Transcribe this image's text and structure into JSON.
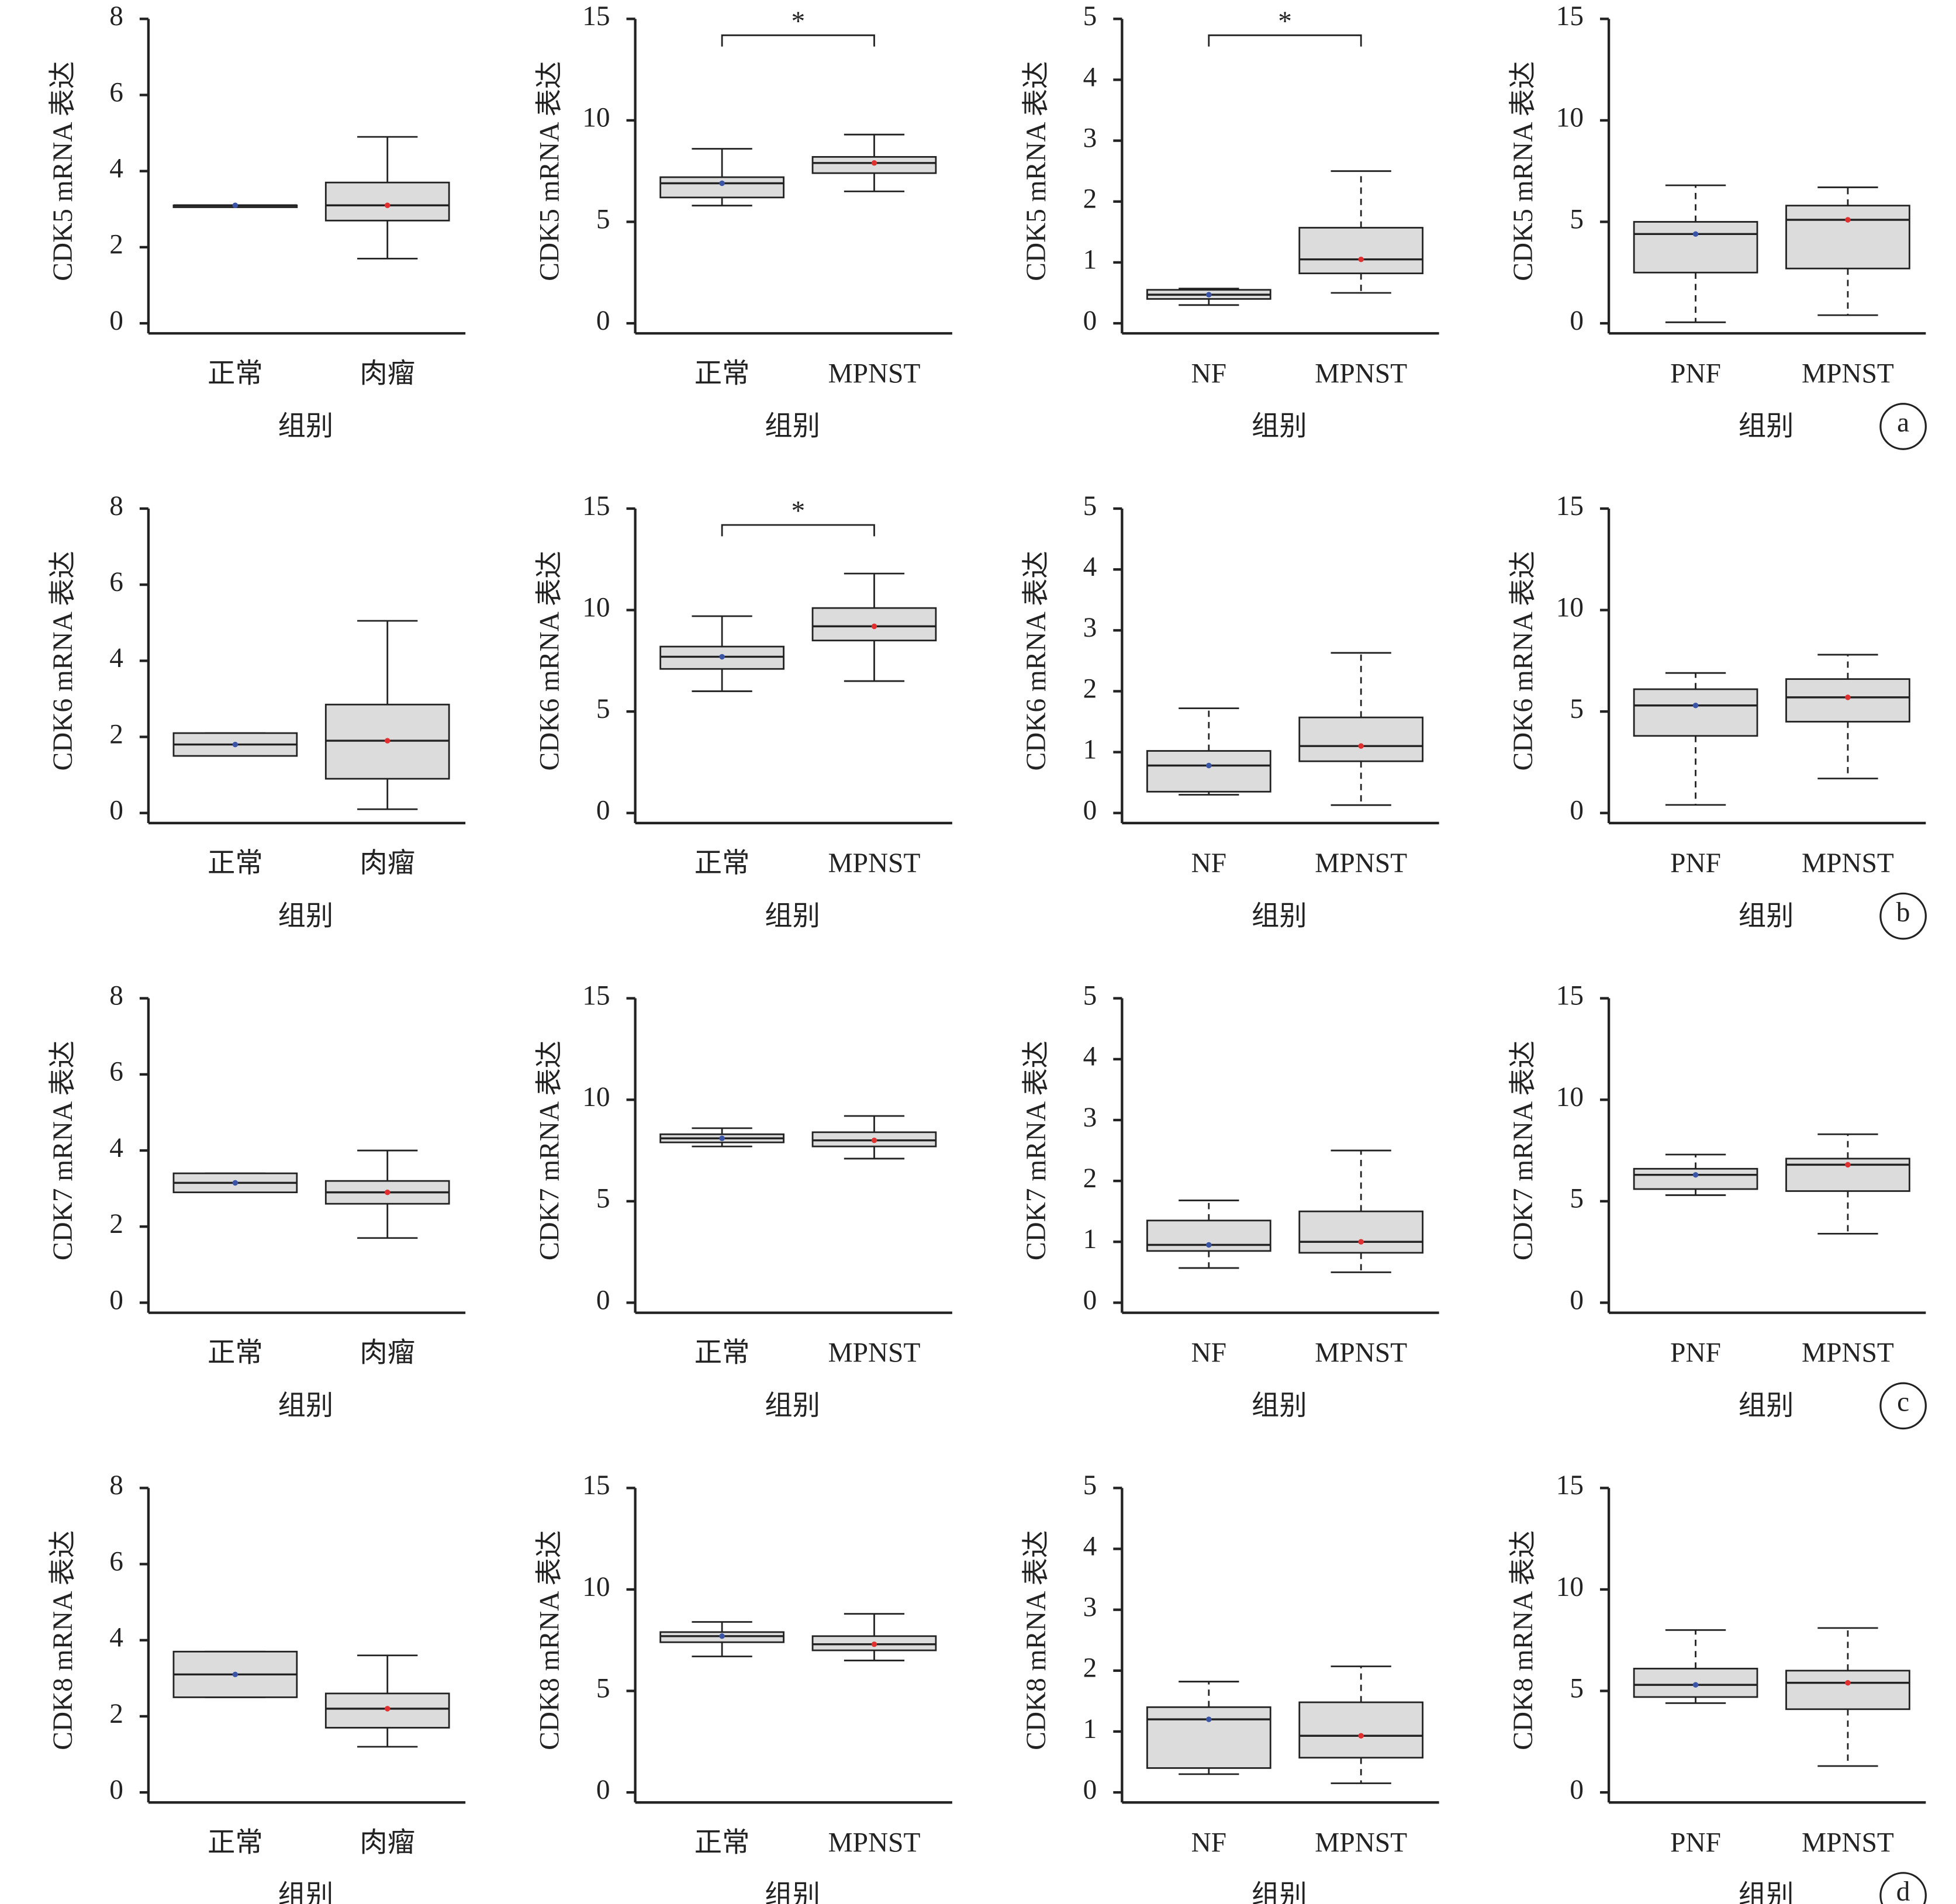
{
  "chart_data": [
    {
      "type": "box",
      "ylabel": "CDK5 mRNA 表达",
      "xlabel": "组别",
      "categories": [
        "正常",
        "肉瘤"
      ],
      "colors": [
        "#3a55a5",
        "#e03030"
      ],
      "ylim": [
        0,
        8
      ],
      "yticks": [
        0,
        2,
        4,
        6,
        8
      ],
      "dashed_whiskers": false,
      "boxes": [
        {
          "min": 3.1,
          "q1": 3.1,
          "median": 3.1,
          "q3": 3.1,
          "max": 3.1
        },
        {
          "min": 1.7,
          "q1": 2.7,
          "median": 3.1,
          "q3": 3.7,
          "max": 4.9
        }
      ]
    },
    {
      "type": "box",
      "ylabel": "CDK5 mRNA 表达",
      "xlabel": "组别",
      "categories": [
        "正常",
        "MPNST"
      ],
      "colors": [
        "#3a55a5",
        "#e03030"
      ],
      "ylim": [
        0,
        15
      ],
      "yticks": [
        0,
        5,
        10,
        15
      ],
      "dashed_whiskers": false,
      "significance": "*",
      "boxes": [
        {
          "min": 5.8,
          "q1": 6.2,
          "median": 6.9,
          "q3": 7.2,
          "max": 8.6
        },
        {
          "min": 6.5,
          "q1": 7.4,
          "median": 7.9,
          "q3": 8.2,
          "max": 9.3
        }
      ]
    },
    {
      "type": "box",
      "ylabel": "CDK5 mRNA 表达",
      "xlabel": "组别",
      "categories": [
        "NF",
        "MPNST"
      ],
      "colors": [
        "#3a55a5",
        "#e03030"
      ],
      "ylim": [
        0,
        5
      ],
      "yticks": [
        0,
        1,
        2,
        3,
        4,
        5
      ],
      "dashed_whiskers": true,
      "significance": "*",
      "boxes": [
        {
          "min": 0.3,
          "q1": 0.4,
          "median": 0.47,
          "q3": 0.55,
          "max": 0.57
        },
        {
          "min": 0.5,
          "q1": 0.82,
          "median": 1.05,
          "q3": 1.57,
          "max": 2.5
        }
      ]
    },
    {
      "type": "box",
      "ylabel": "CDK5 mRNA 表达",
      "xlabel": "组别",
      "categories": [
        "PNF",
        "MPNST"
      ],
      "colors": [
        "#3a55a5",
        "#e03030"
      ],
      "ylim": [
        0,
        15
      ],
      "yticks": [
        0,
        5,
        10,
        15
      ],
      "dashed_whiskers": true,
      "panel_label": "a",
      "boxes": [
        {
          "min": 0.05,
          "q1": 2.5,
          "median": 4.4,
          "q3": 5.0,
          "max": 6.8
        },
        {
          "min": 0.4,
          "q1": 2.7,
          "median": 5.1,
          "q3": 5.8,
          "max": 6.7
        }
      ]
    },
    {
      "type": "box",
      "ylabel": "CDK6 mRNA 表达",
      "xlabel": "组别",
      "categories": [
        "正常",
        "肉瘤"
      ],
      "colors": [
        "#3a55a5",
        "#e03030"
      ],
      "ylim": [
        0,
        8
      ],
      "yticks": [
        0,
        2,
        4,
        6,
        8
      ],
      "dashed_whiskers": false,
      "boxes": [
        {
          "min": 1.5,
          "q1": 1.5,
          "median": 1.8,
          "q3": 2.1,
          "max": 2.1
        },
        {
          "min": 0.1,
          "q1": 0.9,
          "median": 1.9,
          "q3": 2.85,
          "max": 5.05
        }
      ]
    },
    {
      "type": "box",
      "ylabel": "CDK6 mRNA 表达",
      "xlabel": "组别",
      "categories": [
        "正常",
        "MPNST"
      ],
      "colors": [
        "#3a55a5",
        "#e03030"
      ],
      "ylim": [
        0,
        15
      ],
      "yticks": [
        0,
        5,
        10,
        15
      ],
      "dashed_whiskers": false,
      "significance": "*",
      "boxes": [
        {
          "min": 6.0,
          "q1": 7.1,
          "median": 7.7,
          "q3": 8.2,
          "max": 9.7
        },
        {
          "min": 6.5,
          "q1": 8.5,
          "median": 9.2,
          "q3": 10.1,
          "max": 11.8
        }
      ]
    },
    {
      "type": "box",
      "ylabel": "CDK6 mRNA 表达",
      "xlabel": "组别",
      "categories": [
        "NF",
        "MPNST"
      ],
      "colors": [
        "#3a55a5",
        "#e03030"
      ],
      "ylim": [
        0,
        5
      ],
      "yticks": [
        0,
        1,
        2,
        3,
        4,
        5
      ],
      "dashed_whiskers": true,
      "boxes": [
        {
          "min": 0.3,
          "q1": 0.35,
          "median": 0.78,
          "q3": 1.02,
          "max": 1.72
        },
        {
          "min": 0.13,
          "q1": 0.85,
          "median": 1.1,
          "q3": 1.57,
          "max": 2.63
        }
      ]
    },
    {
      "type": "box",
      "ylabel": "CDK6 mRNA 表达",
      "xlabel": "组别",
      "categories": [
        "PNF",
        "MPNST"
      ],
      "colors": [
        "#3a55a5",
        "#e03030"
      ],
      "ylim": [
        0,
        15
      ],
      "yticks": [
        0,
        5,
        10,
        15
      ],
      "dashed_whiskers": true,
      "panel_label": "b",
      "boxes": [
        {
          "min": 0.4,
          "q1": 3.8,
          "median": 5.3,
          "q3": 6.1,
          "max": 6.9
        },
        {
          "min": 1.7,
          "q1": 4.5,
          "median": 5.7,
          "q3": 6.6,
          "max": 7.8
        }
      ]
    },
    {
      "type": "box",
      "ylabel": "CDK7 mRNA 表达",
      "xlabel": "组别",
      "categories": [
        "正常",
        "肉瘤"
      ],
      "colors": [
        "#3a55a5",
        "#e03030"
      ],
      "ylim": [
        0,
        8
      ],
      "yticks": [
        0,
        2,
        4,
        6,
        8
      ],
      "dashed_whiskers": false,
      "boxes": [
        {
          "min": 2.9,
          "q1": 2.9,
          "median": 3.15,
          "q3": 3.4,
          "max": 3.4
        },
        {
          "min": 1.7,
          "q1": 2.6,
          "median": 2.9,
          "q3": 3.2,
          "max": 4.0
        }
      ]
    },
    {
      "type": "box",
      "ylabel": "CDK7 mRNA 表达",
      "xlabel": "组别",
      "categories": [
        "正常",
        "MPNST"
      ],
      "colors": [
        "#3a55a5",
        "#e03030"
      ],
      "ylim": [
        0,
        15
      ],
      "yticks": [
        0,
        5,
        10,
        15
      ],
      "dashed_whiskers": false,
      "boxes": [
        {
          "min": 7.7,
          "q1": 7.9,
          "median": 8.1,
          "q3": 8.3,
          "max": 8.6
        },
        {
          "min": 7.1,
          "q1": 7.7,
          "median": 8.0,
          "q3": 8.4,
          "max": 9.2
        }
      ]
    },
    {
      "type": "box",
      "ylabel": "CDK7 mRNA 表达",
      "xlabel": "组别",
      "categories": [
        "NF",
        "MPNST"
      ],
      "colors": [
        "#3a55a5",
        "#e03030"
      ],
      "ylim": [
        0,
        5
      ],
      "yticks": [
        0,
        1,
        2,
        3,
        4,
        5
      ],
      "dashed_whiskers": true,
      "boxes": [
        {
          "min": 0.57,
          "q1": 0.85,
          "median": 0.95,
          "q3": 1.35,
          "max": 1.68
        },
        {
          "min": 0.5,
          "q1": 0.82,
          "median": 1.0,
          "q3": 1.5,
          "max": 2.5
        }
      ]
    },
    {
      "type": "box",
      "ylabel": "CDK7 mRNA 表达",
      "xlabel": "组别",
      "categories": [
        "PNF",
        "MPNST"
      ],
      "colors": [
        "#3a55a5",
        "#e03030"
      ],
      "ylim": [
        0,
        15
      ],
      "yticks": [
        0,
        5,
        10,
        15
      ],
      "dashed_whiskers": true,
      "panel_label": "c",
      "boxes": [
        {
          "min": 5.3,
          "q1": 5.6,
          "median": 6.3,
          "q3": 6.6,
          "max": 7.3
        },
        {
          "min": 3.4,
          "q1": 5.5,
          "median": 6.8,
          "q3": 7.1,
          "max": 8.3
        }
      ]
    },
    {
      "type": "box",
      "ylabel": "CDK8 mRNA 表达",
      "xlabel": "组别",
      "categories": [
        "正常",
        "肉瘤"
      ],
      "colors": [
        "#3a55a5",
        "#e03030"
      ],
      "ylim": [
        0,
        8
      ],
      "yticks": [
        0,
        2,
        4,
        6,
        8
      ],
      "dashed_whiskers": false,
      "boxes": [
        {
          "min": 2.5,
          "q1": 2.5,
          "median": 3.1,
          "q3": 3.7,
          "max": 3.7
        },
        {
          "min": 1.2,
          "q1": 1.7,
          "median": 2.2,
          "q3": 2.6,
          "max": 3.6
        }
      ]
    },
    {
      "type": "box",
      "ylabel": "CDK8 mRNA 表达",
      "xlabel": "组别",
      "categories": [
        "正常",
        "MPNST"
      ],
      "colors": [
        "#3a55a5",
        "#e03030"
      ],
      "ylim": [
        0,
        15
      ],
      "yticks": [
        0,
        5,
        10,
        15
      ],
      "dashed_whiskers": false,
      "boxes": [
        {
          "min": 6.7,
          "q1": 7.4,
          "median": 7.7,
          "q3": 7.9,
          "max": 8.4
        },
        {
          "min": 6.5,
          "q1": 7.0,
          "median": 7.3,
          "q3": 7.7,
          "max": 8.8
        }
      ]
    },
    {
      "type": "box",
      "ylabel": "CDK8 mRNA 表达",
      "xlabel": "组别",
      "categories": [
        "NF",
        "MPNST"
      ],
      "colors": [
        "#3a55a5",
        "#e03030"
      ],
      "ylim": [
        0,
        5
      ],
      "yticks": [
        0,
        1,
        2,
        3,
        4,
        5
      ],
      "dashed_whiskers": true,
      "boxes": [
        {
          "min": 0.3,
          "q1": 0.4,
          "median": 1.2,
          "q3": 1.4,
          "max": 1.82
        },
        {
          "min": 0.15,
          "q1": 0.57,
          "median": 0.93,
          "q3": 1.48,
          "max": 2.07
        }
      ]
    },
    {
      "type": "box",
      "ylabel": "CDK8 mRNA 表达",
      "xlabel": "组别",
      "categories": [
        "PNF",
        "MPNST"
      ],
      "colors": [
        "#3a55a5",
        "#e03030"
      ],
      "ylim": [
        0,
        15
      ],
      "yticks": [
        0,
        5,
        10,
        15
      ],
      "dashed_whiskers": true,
      "panel_label": "d",
      "boxes": [
        {
          "min": 4.4,
          "q1": 4.7,
          "median": 5.3,
          "q3": 6.1,
          "max": 8.0
        },
        {
          "min": 1.3,
          "q1": 4.1,
          "median": 5.4,
          "q3": 6.0,
          "max": 8.1
        }
      ]
    }
  ]
}
